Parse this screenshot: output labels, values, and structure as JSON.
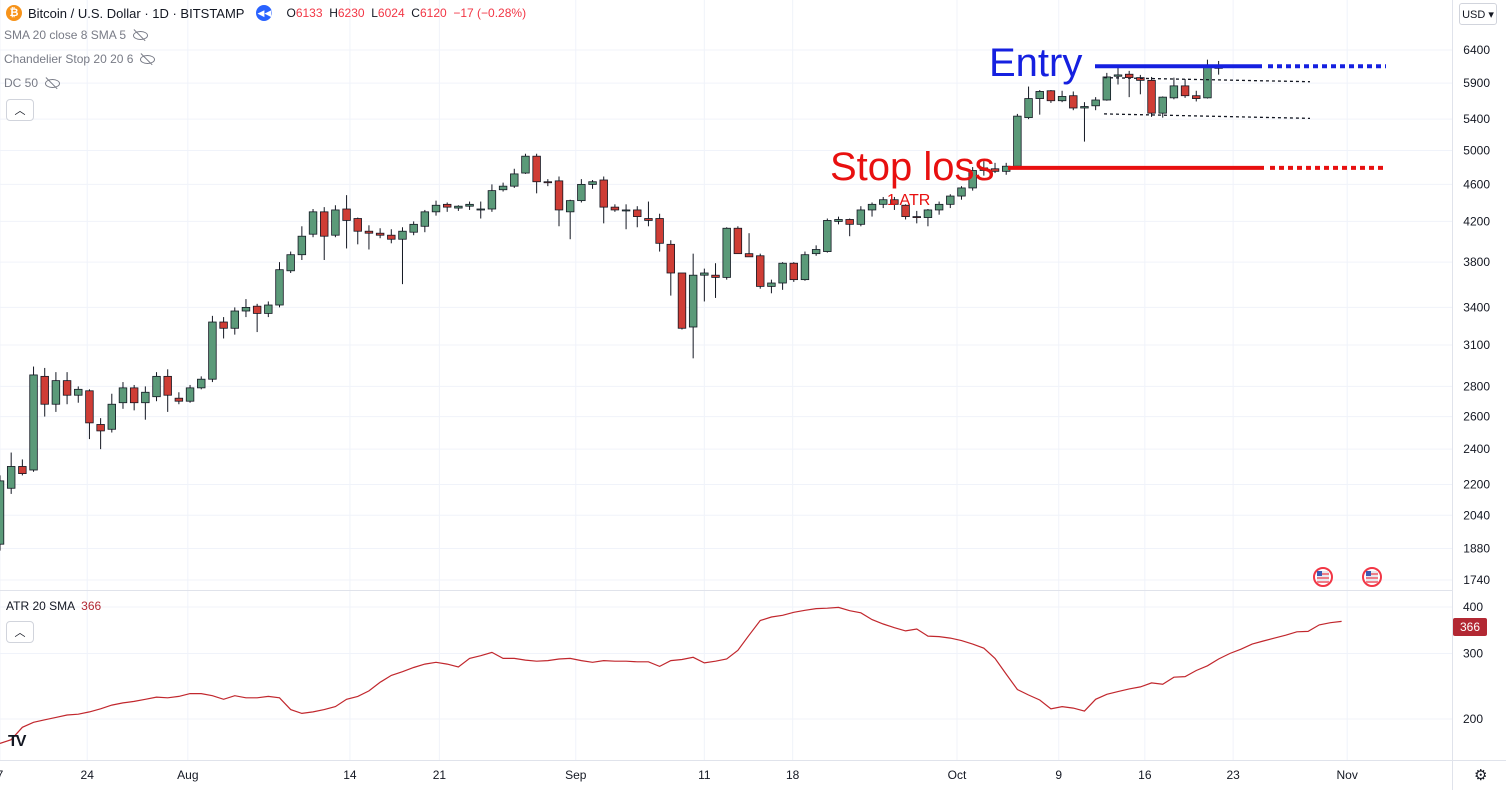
{
  "header": {
    "symbol_title": "Bitcoin / U.S. Dollar · 1D · BITSTAMP",
    "ohlc": {
      "o_label": "O",
      "o": "6133",
      "h_label": "H",
      "h": "6230",
      "l_label": "L",
      "l": "6024",
      "c_label": "C",
      "c": "6120",
      "change": "−17 (−0.28%)"
    },
    "coin_symbol": "₿",
    "currency_button": "USD ▾"
  },
  "indicators": [
    {
      "label": "SMA 20 close 8 SMA 5"
    },
    {
      "label": "Chandelier Stop 20 20 6"
    },
    {
      "label": "DC 50"
    }
  ],
  "atr_panel": {
    "title": "ATR 20 SMA",
    "value": "366"
  },
  "annotations": {
    "entry": "Entry",
    "stop": "Stop loss",
    "atr": "1 ATR"
  },
  "colors": {
    "up": "#5b9a79",
    "down": "#cf3d35",
    "atr_line": "#c1272d",
    "entry": "#1520e0",
    "stop": "#e81010",
    "grid": "#f0f3fa"
  },
  "icons": [
    "bitcoin-icon",
    "replay-icon",
    "eye-hidden-icon",
    "chevron-up-icon",
    "tradingview-logo-icon",
    "settings-icon",
    "us-flag-icon"
  ],
  "chart_data": {
    "type": "candlestick",
    "price_scale": "log",
    "y_ticks": [
      1740,
      1880,
      2040,
      2200,
      2400,
      2600,
      2800,
      3100,
      3400,
      3800,
      4200,
      4600,
      5000,
      5400,
      5900,
      6400
    ],
    "x_ticks": [
      "7",
      "24",
      "Aug",
      "14",
      "21",
      "Sep",
      "11",
      "18",
      "Oct",
      "9",
      "16",
      "23",
      "Nov"
    ],
    "ohlc": [
      [
        1900,
        2250,
        1870,
        2220
      ],
      [
        2180,
        2380,
        2150,
        2300
      ],
      [
        2300,
        2340,
        2250,
        2260
      ],
      [
        2280,
        2940,
        2270,
        2880
      ],
      [
        2870,
        2930,
        2600,
        2680
      ],
      [
        2680,
        2900,
        2630,
        2840
      ],
      [
        2840,
        2900,
        2680,
        2740
      ],
      [
        2740,
        2800,
        2690,
        2780
      ],
      [
        2770,
        2780,
        2460,
        2560
      ],
      [
        2550,
        2590,
        2400,
        2510
      ],
      [
        2520,
        2750,
        2500,
        2680
      ],
      [
        2690,
        2830,
        2650,
        2790
      ],
      [
        2790,
        2810,
        2640,
        2690
      ],
      [
        2690,
        2800,
        2580,
        2760
      ],
      [
        2730,
        2900,
        2700,
        2870
      ],
      [
        2870,
        2920,
        2630,
        2740
      ],
      [
        2720,
        2760,
        2680,
        2700
      ],
      [
        2700,
        2810,
        2690,
        2790
      ],
      [
        2790,
        2870,
        2780,
        2850
      ],
      [
        2850,
        3330,
        2830,
        3280
      ],
      [
        3280,
        3320,
        3150,
        3230
      ],
      [
        3230,
        3400,
        3180,
        3370
      ],
      [
        3370,
        3470,
        3320,
        3400
      ],
      [
        3410,
        3430,
        3200,
        3350
      ],
      [
        3350,
        3450,
        3320,
        3420
      ],
      [
        3420,
        3800,
        3400,
        3730
      ],
      [
        3720,
        3900,
        3700,
        3870
      ],
      [
        3870,
        4150,
        3820,
        4050
      ],
      [
        4070,
        4330,
        4040,
        4300
      ],
      [
        4300,
        4350,
        3820,
        4050
      ],
      [
        4060,
        4370,
        4040,
        4320
      ],
      [
        4330,
        4480,
        3930,
        4210
      ],
      [
        4230,
        4240,
        3970,
        4100
      ],
      [
        4100,
        4160,
        3920,
        4080
      ],
      [
        4080,
        4130,
        4030,
        4060
      ],
      [
        4060,
        4120,
        3980,
        4020
      ],
      [
        4020,
        4140,
        3600,
        4100
      ],
      [
        4090,
        4200,
        4060,
        4170
      ],
      [
        4150,
        4320,
        4090,
        4300
      ],
      [
        4300,
        4420,
        4260,
        4370
      ],
      [
        4380,
        4400,
        4300,
        4350
      ],
      [
        4340,
        4370,
        4310,
        4360
      ],
      [
        4360,
        4410,
        4320,
        4380
      ],
      [
        4330,
        4410,
        4230,
        4330
      ],
      [
        4330,
        4600,
        4300,
        4530
      ],
      [
        4540,
        4620,
        4520,
        4580
      ],
      [
        4580,
        4780,
        4560,
        4720
      ],
      [
        4730,
        4960,
        4720,
        4930
      ],
      [
        4930,
        4960,
        4500,
        4630
      ],
      [
        4630,
        4660,
        4580,
        4620
      ],
      [
        4640,
        4690,
        4150,
        4320
      ],
      [
        4300,
        4430,
        4020,
        4420
      ],
      [
        4420,
        4660,
        4400,
        4600
      ],
      [
        4600,
        4650,
        4550,
        4630
      ],
      [
        4650,
        4690,
        4180,
        4350
      ],
      [
        4350,
        4380,
        4300,
        4320
      ],
      [
        4320,
        4380,
        4120,
        4320
      ],
      [
        4320,
        4360,
        4140,
        4250
      ],
      [
        4230,
        4410,
        4150,
        4210
      ],
      [
        4230,
        4280,
        3900,
        3980
      ],
      [
        3970,
        4010,
        3500,
        3700
      ],
      [
        3700,
        3700,
        3220,
        3230
      ],
      [
        3240,
        3880,
        3000,
        3680
      ],
      [
        3680,
        3740,
        3450,
        3700
      ],
      [
        3680,
        3790,
        3480,
        3660
      ],
      [
        3660,
        4140,
        3640,
        4130
      ],
      [
        4130,
        4150,
        3890,
        3880
      ],
      [
        3880,
        4080,
        3870,
        3850
      ],
      [
        3860,
        3880,
        3560,
        3580
      ],
      [
        3580,
        3640,
        3520,
        3610
      ],
      [
        3610,
        3800,
        3550,
        3790
      ],
      [
        3790,
        3800,
        3620,
        3640
      ],
      [
        3640,
        3900,
        3630,
        3870
      ],
      [
        3880,
        3960,
        3860,
        3920
      ],
      [
        3900,
        4230,
        3890,
        4210
      ],
      [
        4200,
        4250,
        4170,
        4220
      ],
      [
        4220,
        4230,
        4050,
        4170
      ],
      [
        4170,
        4360,
        4150,
        4320
      ],
      [
        4320,
        4400,
        4250,
        4380
      ],
      [
        4380,
        4460,
        4340,
        4430
      ],
      [
        4430,
        4460,
        4320,
        4380
      ],
      [
        4370,
        4380,
        4220,
        4250
      ],
      [
        4250,
        4310,
        4180,
        4240
      ],
      [
        4240,
        4330,
        4150,
        4320
      ],
      [
        4320,
        4410,
        4270,
        4380
      ],
      [
        4380,
        4490,
        4340,
        4470
      ],
      [
        4470,
        4580,
        4430,
        4560
      ],
      [
        4560,
        4800,
        4530,
        4760
      ],
      [
        4760,
        4870,
        4700,
        4790
      ],
      [
        4780,
        4850,
        4730,
        4750
      ],
      [
        4750,
        4850,
        4710,
        4810
      ],
      [
        4810,
        5470,
        4790,
        5440
      ],
      [
        5420,
        5850,
        5400,
        5680
      ],
      [
        5680,
        5800,
        5460,
        5780
      ],
      [
        5790,
        5800,
        5620,
        5650
      ],
      [
        5650,
        5790,
        5630,
        5710
      ],
      [
        5720,
        5780,
        5520,
        5550
      ],
      [
        5550,
        5630,
        5110,
        5570
      ],
      [
        5580,
        5700,
        5520,
        5660
      ],
      [
        5660,
        6050,
        5650,
        5990
      ],
      [
        6000,
        6150,
        5880,
        6020
      ],
      [
        6030,
        6080,
        5700,
        5980
      ],
      [
        5980,
        6020,
        5740,
        5940
      ],
      [
        5940,
        5990,
        5430,
        5480
      ],
      [
        5480,
        5710,
        5420,
        5700
      ],
      [
        5690,
        5980,
        5670,
        5860
      ],
      [
        5860,
        5960,
        5690,
        5720
      ],
      [
        5720,
        5790,
        5640,
        5680
      ],
      [
        5690,
        6250,
        5680,
        6137
      ],
      [
        6133,
        6230,
        6024,
        6120
      ]
    ],
    "atr": [
      172,
      176,
      190,
      196,
      199,
      202,
      205,
      206,
      209,
      213,
      218,
      221,
      223,
      226,
      229,
      228,
      230,
      234,
      234,
      231,
      226,
      231,
      228,
      228,
      230,
      228,
      212,
      207,
      209,
      212,
      216,
      226,
      230,
      238,
      251,
      262,
      268,
      275,
      281,
      284,
      281,
      276,
      291,
      296,
      302,
      291,
      291,
      288,
      286,
      287,
      290,
      291,
      287,
      284,
      287,
      286,
      286,
      285,
      285,
      277,
      287,
      289,
      293,
      283,
      286,
      290,
      306,
      336,
      368,
      376,
      380,
      387,
      392,
      396,
      397,
      399,
      391,
      386,
      370,
      360,
      352,
      345,
      349,
      334,
      333,
      330,
      325,
      318,
      310,
      291,
      264,
      240,
      232,
      225,
      213,
      216,
      214,
      210,
      226,
      233,
      237,
      241,
      244,
      250,
      248,
      259,
      260,
      270,
      278,
      290,
      300,
      308,
      318,
      324,
      330,
      336,
      343,
      344,
      358,
      363,
      366
    ],
    "atr_y_ticks": [
      200,
      300,
      400
    ],
    "range_lines": {
      "upper": [
        5980,
        5920
      ],
      "lower": [
        5470,
        5410
      ]
    },
    "entry_price": 6150,
    "stop_price": 4790
  }
}
